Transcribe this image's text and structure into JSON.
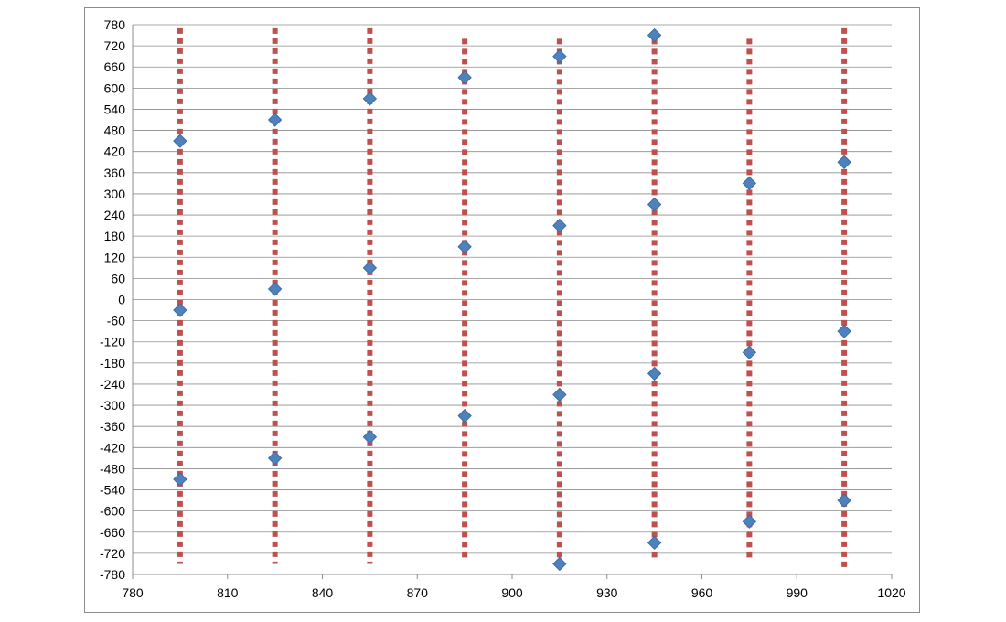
{
  "chart_data": {
    "type": "scatter",
    "title": "",
    "xlabel": "",
    "ylabel": "",
    "xlim": [
      780,
      1020
    ],
    "ylim": [
      -780,
      780
    ],
    "x_ticks": [
      780,
      810,
      840,
      870,
      900,
      930,
      960,
      990,
      1020
    ],
    "y_ticks": [
      780,
      720,
      660,
      600,
      540,
      480,
      420,
      360,
      300,
      240,
      180,
      120,
      60,
      0,
      -60,
      -120,
      -180,
      -240,
      -300,
      -360,
      -420,
      -480,
      -540,
      -600,
      -660,
      -720,
      -780
    ],
    "grid": {
      "horizontal": true,
      "vertical": false
    },
    "legend": "none",
    "series": [
      {
        "marker": "diamond",
        "color": "#4f81bd",
        "points": [
          {
            "x": 795,
            "y": 450
          },
          {
            "x": 795,
            "y": -30
          },
          {
            "x": 795,
            "y": -510
          },
          {
            "x": 825,
            "y": 510
          },
          {
            "x": 825,
            "y": 30
          },
          {
            "x": 825,
            "y": -450
          },
          {
            "x": 855,
            "y": 570
          },
          {
            "x": 855,
            "y": 90
          },
          {
            "x": 855,
            "y": -390
          },
          {
            "x": 885,
            "y": 630
          },
          {
            "x": 885,
            "y": 150
          },
          {
            "x": 885,
            "y": -330
          },
          {
            "x": 915,
            "y": 690
          },
          {
            "x": 915,
            "y": 210
          },
          {
            "x": 915,
            "y": -270
          },
          {
            "x": 915,
            "y": -750
          },
          {
            "x": 945,
            "y": 750
          },
          {
            "x": 945,
            "y": 270
          },
          {
            "x": 945,
            "y": -210
          },
          {
            "x": 945,
            "y": -690
          },
          {
            "x": 975,
            "y": 330
          },
          {
            "x": 975,
            "y": -150
          },
          {
            "x": 975,
            "y": -630
          },
          {
            "x": 1005,
            "y": 390
          },
          {
            "x": 1005,
            "y": -90
          },
          {
            "x": 1005,
            "y": -570
          }
        ]
      },
      {
        "marker": "vertical-dotted-line",
        "color": "#c0504d",
        "segments": [
          {
            "x": 795,
            "y1": -750,
            "y2": 770
          },
          {
            "x": 825,
            "y1": -750,
            "y2": 770
          },
          {
            "x": 855,
            "y1": -750,
            "y2": 770
          },
          {
            "x": 885,
            "y1": -740,
            "y2": 740
          },
          {
            "x": 915,
            "y1": -740,
            "y2": 740
          },
          {
            "x": 945,
            "y1": -740,
            "y2": 740
          },
          {
            "x": 975,
            "y1": -740,
            "y2": 740
          },
          {
            "x": 1005,
            "y1": -770,
            "y2": 770
          }
        ]
      }
    ]
  }
}
